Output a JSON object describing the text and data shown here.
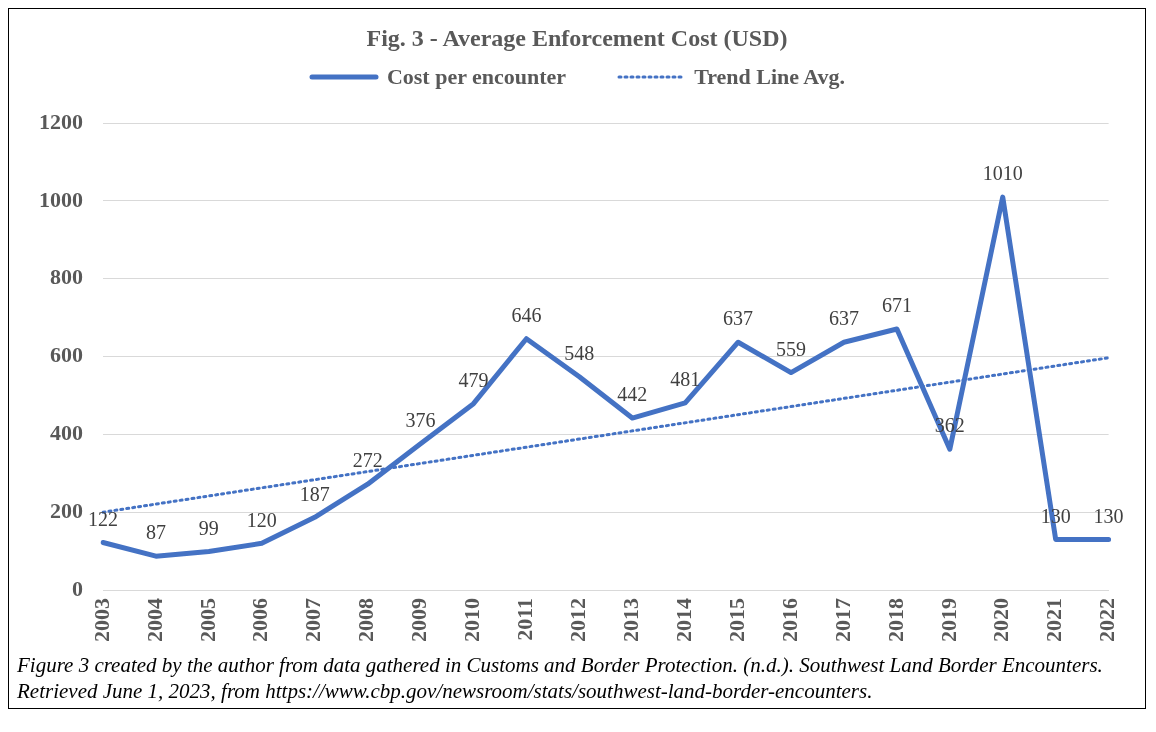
{
  "chart_data": {
    "type": "line",
    "title": "Fig. 3 - Average Enforcement Cost (USD)",
    "categories": [
      "2003",
      "2004",
      "2005",
      "2006",
      "2007",
      "2008",
      "2009",
      "2010",
      "2011",
      "2012",
      "2013",
      "2014",
      "2015",
      "2016",
      "2017",
      "2018",
      "2019",
      "2020",
      "2021",
      "2022"
    ],
    "series": [
      {
        "name": "Cost per encounter",
        "color": "#4472c4",
        "line_style": "solid",
        "values": [
          122,
          87,
          99,
          120,
          187,
          272,
          376,
          479,
          646,
          548,
          442,
          481,
          637,
          559,
          637,
          671,
          362,
          1010,
          130,
          130
        ],
        "value_labels": [
          "122",
          "87",
          "99",
          "120",
          "187",
          "272",
          "376",
          "479",
          "646",
          "548",
          "442",
          "481",
          "637",
          "559",
          "637",
          "671",
          "362",
          "1010",
          "130",
          "130"
        ]
      },
      {
        "name": "Trend Line Avg.",
        "color": "#4472c4",
        "line_style": "dotted",
        "values": [
          200,
          null,
          null,
          null,
          null,
          null,
          null,
          null,
          null,
          null,
          null,
          null,
          null,
          null,
          null,
          null,
          null,
          null,
          null,
          597
        ]
      }
    ],
    "ylim": [
      0,
      1200
    ],
    "yticks": [
      0,
      200,
      400,
      600,
      800,
      1000,
      1200
    ],
    "grid": "y",
    "legend": "top",
    "marker": "none",
    "annotations": [
      "Figure 3 created by the author from data gathered in Customs and Border Protection. (n.d.). Southwest Land Border Encounters. Retrieved June 1, 2023, from https://www.cbp.gov/newsroom/stats/southwest-land-border-encounters."
    ]
  }
}
